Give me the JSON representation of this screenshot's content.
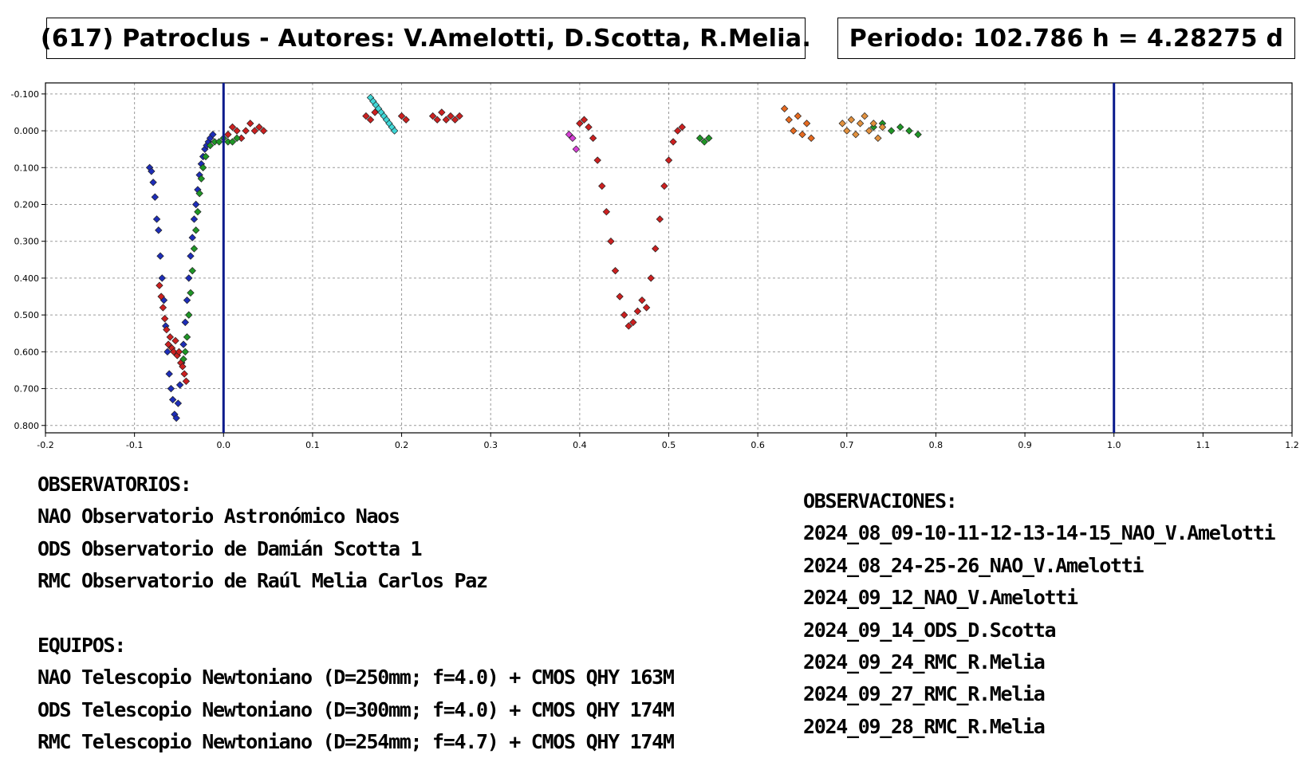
{
  "header": {
    "title": "(617) Patroclus - Autores: V.Amelotti, D.Scotta, R.Melia.",
    "period": "Periodo: 102.786 h = 4.28275 d"
  },
  "chart_data": {
    "type": "scatter",
    "xlim": [
      -0.2,
      1.2
    ],
    "ylim": [
      -0.13,
      0.82
    ],
    "y_inverted": true,
    "grid": true,
    "x_ticks": [
      "-0.2",
      "-0.1",
      "0.0",
      "0.1",
      "0.2",
      "0.3",
      "0.4",
      "0.5",
      "0.6",
      "0.7",
      "0.8",
      "0.9",
      "1.0",
      "1.1",
      "1.2"
    ],
    "y_ticks": [
      "-0.100",
      "0.000",
      "0.100",
      "0.200",
      "0.300",
      "0.400",
      "0.500",
      "0.600",
      "0.700",
      "0.800"
    ],
    "vertical_lines": [
      0.0,
      1.0
    ],
    "colors": {
      "blue": "#1d2db8",
      "red": "#cc2020",
      "green": "#1f9626",
      "cyan": "#3fd6d6",
      "orange": "#e2913e",
      "darkorange": "#e66a20",
      "magenta": "#d640d6",
      "vline": "#0a1a8c"
    },
    "series": [
      {
        "color": "blue",
        "points": [
          [
            -0.083,
            0.1
          ],
          [
            -0.081,
            0.11
          ],
          [
            -0.079,
            0.14
          ],
          [
            -0.077,
            0.18
          ],
          [
            -0.075,
            0.24
          ],
          [
            -0.073,
            0.27
          ],
          [
            -0.071,
            0.34
          ],
          [
            -0.069,
            0.4
          ],
          [
            -0.067,
            0.46
          ],
          [
            -0.065,
            0.53
          ],
          [
            -0.063,
            0.6
          ],
          [
            -0.061,
            0.66
          ],
          [
            -0.059,
            0.7
          ],
          [
            -0.057,
            0.73
          ],
          [
            -0.055,
            0.77
          ],
          [
            -0.053,
            0.78
          ],
          [
            -0.051,
            0.74
          ],
          [
            -0.049,
            0.69
          ],
          [
            -0.047,
            0.63
          ],
          [
            -0.045,
            0.58
          ],
          [
            -0.043,
            0.52
          ],
          [
            -0.041,
            0.46
          ],
          [
            -0.039,
            0.4
          ],
          [
            -0.037,
            0.34
          ],
          [
            -0.035,
            0.29
          ],
          [
            -0.033,
            0.24
          ],
          [
            -0.031,
            0.2
          ],
          [
            -0.029,
            0.16
          ],
          [
            -0.027,
            0.12
          ],
          [
            -0.025,
            0.09
          ],
          [
            -0.023,
            0.07
          ],
          [
            -0.021,
            0.05
          ],
          [
            -0.019,
            0.04
          ],
          [
            -0.017,
            0.03
          ],
          [
            -0.015,
            0.02
          ],
          [
            -0.012,
            0.01
          ]
        ]
      },
      {
        "color": "red",
        "points": [
          [
            -0.072,
            0.42
          ],
          [
            -0.07,
            0.45
          ],
          [
            -0.068,
            0.48
          ],
          [
            -0.066,
            0.51
          ],
          [
            -0.064,
            0.54
          ],
          [
            -0.062,
            0.58
          ],
          [
            -0.06,
            0.56
          ],
          [
            -0.058,
            0.59
          ],
          [
            -0.056,
            0.6
          ],
          [
            -0.054,
            0.57
          ],
          [
            -0.052,
            0.61
          ],
          [
            -0.05,
            0.6
          ],
          [
            -0.048,
            0.63
          ],
          [
            -0.046,
            0.64
          ],
          [
            -0.044,
            0.66
          ],
          [
            -0.042,
            0.68
          ],
          [
            0.005,
            0.01
          ],
          [
            0.01,
            -0.01
          ],
          [
            0.015,
            0.0
          ],
          [
            0.02,
            0.02
          ],
          [
            0.025,
            0.0
          ],
          [
            0.03,
            -0.02
          ],
          [
            0.035,
            0.0
          ],
          [
            0.04,
            -0.01
          ],
          [
            0.045,
            0.0
          ],
          [
            0.16,
            -0.04
          ],
          [
            0.165,
            -0.03
          ],
          [
            0.17,
            -0.05
          ],
          [
            0.2,
            -0.04
          ],
          [
            0.205,
            -0.03
          ],
          [
            0.235,
            -0.04
          ],
          [
            0.24,
            -0.03
          ],
          [
            0.245,
            -0.05
          ],
          [
            0.25,
            -0.03
          ],
          [
            0.255,
            -0.04
          ],
          [
            0.26,
            -0.03
          ],
          [
            0.265,
            -0.04
          ],
          [
            0.4,
            -0.02
          ],
          [
            0.405,
            -0.03
          ],
          [
            0.41,
            -0.01
          ],
          [
            0.415,
            0.02
          ],
          [
            0.42,
            0.08
          ],
          [
            0.425,
            0.15
          ],
          [
            0.43,
            0.22
          ],
          [
            0.435,
            0.3
          ],
          [
            0.44,
            0.38
          ],
          [
            0.445,
            0.45
          ],
          [
            0.45,
            0.5
          ],
          [
            0.455,
            0.53
          ],
          [
            0.46,
            0.52
          ],
          [
            0.465,
            0.49
          ],
          [
            0.47,
            0.46
          ],
          [
            0.475,
            0.48
          ],
          [
            0.48,
            0.4
          ],
          [
            0.485,
            0.32
          ],
          [
            0.49,
            0.24
          ],
          [
            0.495,
            0.15
          ],
          [
            0.5,
            0.08
          ],
          [
            0.505,
            0.03
          ],
          [
            0.51,
            0.0
          ],
          [
            0.515,
            -0.01
          ]
        ]
      },
      {
        "color": "green",
        "points": [
          [
            -0.045,
            0.62
          ],
          [
            -0.043,
            0.6
          ],
          [
            -0.041,
            0.56
          ],
          [
            -0.039,
            0.5
          ],
          [
            -0.037,
            0.44
          ],
          [
            -0.035,
            0.38
          ],
          [
            -0.033,
            0.32
          ],
          [
            -0.031,
            0.27
          ],
          [
            -0.029,
            0.22
          ],
          [
            -0.027,
            0.17
          ],
          [
            -0.025,
            0.13
          ],
          [
            -0.023,
            0.1
          ],
          [
            -0.02,
            0.07
          ],
          [
            -0.015,
            0.04
          ],
          [
            -0.01,
            0.03
          ],
          [
            -0.005,
            0.03
          ],
          [
            0.0,
            0.02
          ],
          [
            0.005,
            0.03
          ],
          [
            0.01,
            0.03
          ],
          [
            0.015,
            0.02
          ],
          [
            0.535,
            0.02
          ],
          [
            0.54,
            0.03
          ],
          [
            0.545,
            0.02
          ],
          [
            0.73,
            -0.01
          ],
          [
            0.74,
            -0.02
          ],
          [
            0.75,
            0.0
          ],
          [
            0.76,
            -0.01
          ],
          [
            0.77,
            0.0
          ],
          [
            0.78,
            0.01
          ]
        ]
      },
      {
        "color": "cyan",
        "points": [
          [
            0.165,
            -0.09
          ],
          [
            0.168,
            -0.08
          ],
          [
            0.171,
            -0.07
          ],
          [
            0.174,
            -0.06
          ],
          [
            0.177,
            -0.05
          ],
          [
            0.18,
            -0.04
          ],
          [
            0.183,
            -0.03
          ],
          [
            0.186,
            -0.02
          ],
          [
            0.189,
            -0.01
          ],
          [
            0.192,
            0.0
          ]
        ]
      },
      {
        "color": "orange",
        "points": [
          [
            0.695,
            -0.02
          ],
          [
            0.7,
            0.0
          ],
          [
            0.705,
            -0.03
          ],
          [
            0.71,
            0.01
          ],
          [
            0.715,
            -0.02
          ],
          [
            0.72,
            -0.04
          ],
          [
            0.725,
            0.0
          ],
          [
            0.73,
            -0.02
          ],
          [
            0.735,
            0.02
          ],
          [
            0.74,
            -0.01
          ]
        ]
      },
      {
        "color": "darkorange",
        "points": [
          [
            0.63,
            -0.06
          ],
          [
            0.635,
            -0.03
          ],
          [
            0.64,
            0.0
          ],
          [
            0.645,
            -0.04
          ],
          [
            0.65,
            0.01
          ],
          [
            0.655,
            -0.02
          ],
          [
            0.66,
            0.02
          ]
        ]
      },
      {
        "color": "magenta",
        "points": [
          [
            0.388,
            0.01
          ],
          [
            0.392,
            0.02
          ],
          [
            0.396,
            0.05
          ]
        ]
      }
    ]
  },
  "observatorios": {
    "heading": "OBSERVATORIOS:",
    "lines": [
      "NAO Observatorio Astronómico Naos",
      "ODS Observatorio de Damián Scotta 1",
      "RMC Observatorio de Raúl Melia Carlos Paz"
    ]
  },
  "equipos": {
    "heading": "EQUIPOS:",
    "lines": [
      "NAO Telescopio Newtoniano (D=250mm; f=4.0) + CMOS QHY 163M",
      "ODS Telescopio Newtoniano (D=300mm; f=4.0) + CMOS QHY 174M",
      "RMC Telescopio Newtoniano (D=254mm; f=4.7) + CMOS QHY 174M"
    ]
  },
  "observaciones": {
    "heading": "OBSERVACIONES:",
    "lines": [
      "2024_08_09-10-11-12-13-14-15_NAO_V.Amelotti",
      "2024_08_24-25-26_NAO_V.Amelotti",
      "2024_09_12_NAO_V.Amelotti",
      "2024_09_14_ODS_D.Scotta",
      "2024_09_24_RMC_R.Melia",
      "2024_09_27_RMC_R.Melia",
      "2024_09_28_RMC_R.Melia"
    ]
  }
}
